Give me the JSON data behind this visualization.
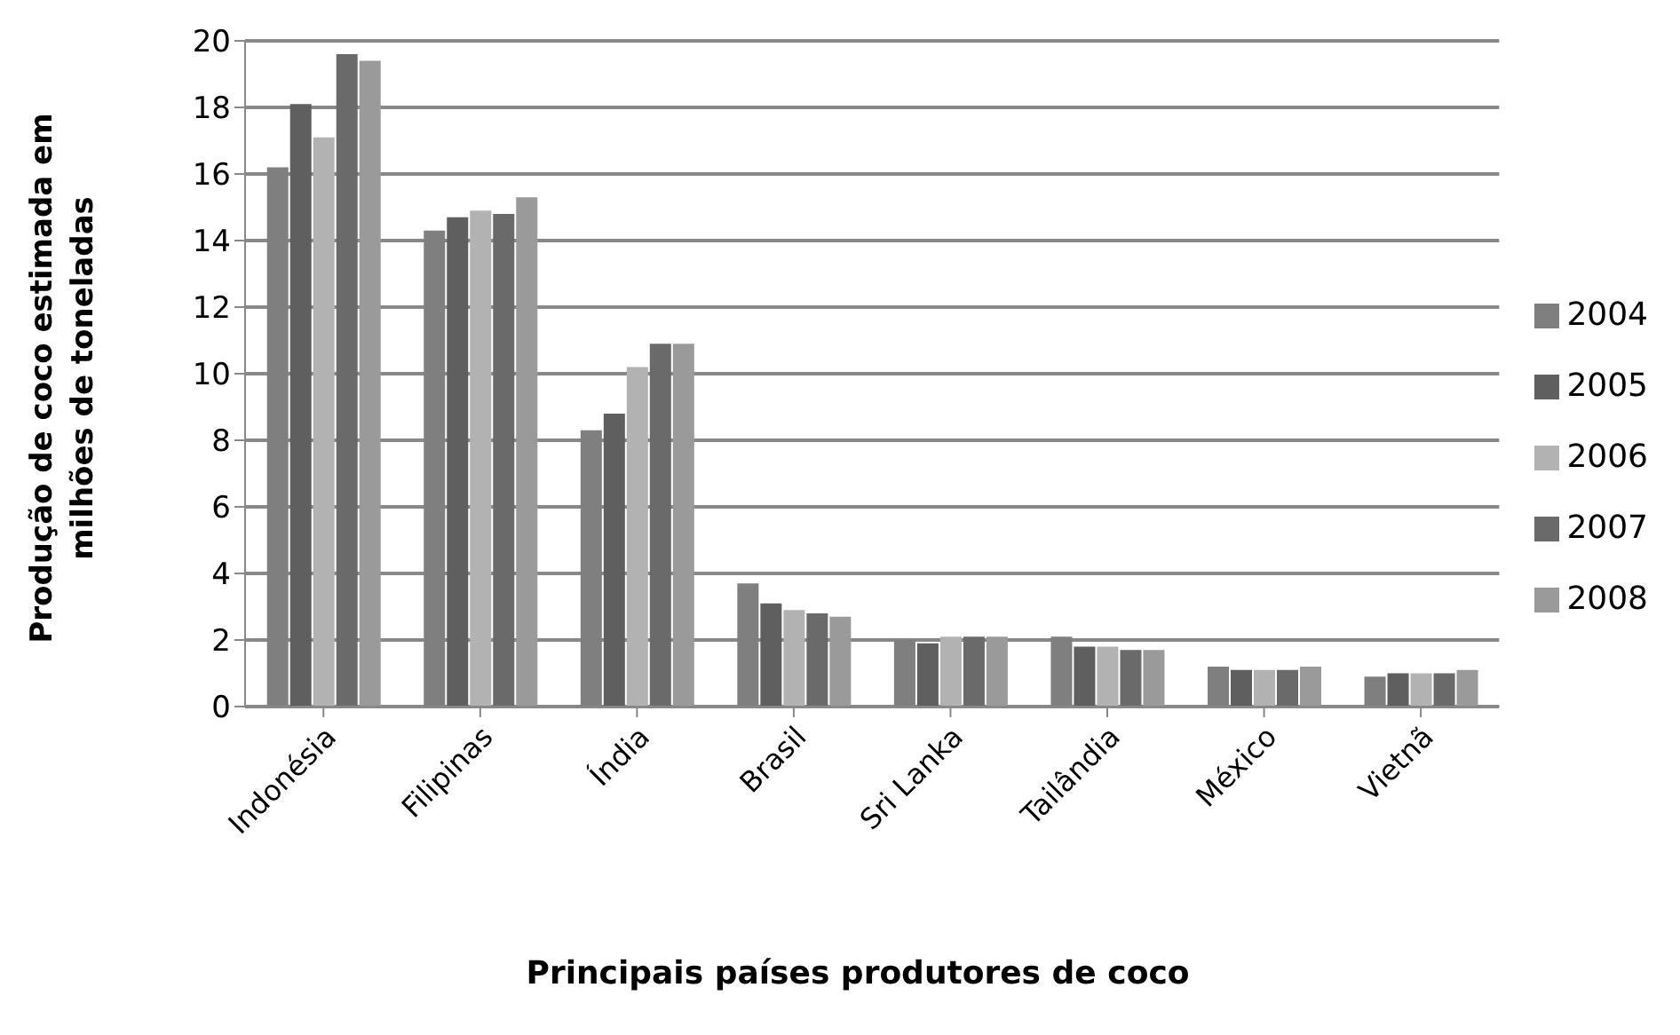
{
  "chart_data": {
    "type": "bar",
    "xlabel": "Principais países produtores de coco",
    "ylabel": "Produção de coco estimada  em milhões de toneladas",
    "categories": [
      "Indonésia",
      "Filipinas",
      "Índia",
      "Brasil",
      "Sri Lanka",
      "Tailândia",
      "México",
      "Vietnã"
    ],
    "series": [
      {
        "name": "2004",
        "color": "#7f7f7f",
        "values": [
          16.2,
          14.3,
          8.3,
          3.7,
          2.0,
          2.1,
          1.2,
          0.9
        ]
      },
      {
        "name": "2005",
        "color": "#5f5f5f",
        "values": [
          18.1,
          14.7,
          8.8,
          3.1,
          1.9,
          1.8,
          1.1,
          1.0
        ]
      },
      {
        "name": "2006",
        "color": "#b2b2b2",
        "values": [
          17.1,
          14.9,
          10.2,
          2.9,
          2.1,
          1.8,
          1.1,
          1.0
        ]
      },
      {
        "name": "2007",
        "color": "#6a6a6a",
        "values": [
          19.6,
          14.8,
          10.9,
          2.8,
          2.1,
          1.7,
          1.1,
          1.0
        ]
      },
      {
        "name": "2008",
        "color": "#9a9a9a",
        "values": [
          19.4,
          15.3,
          10.9,
          2.7,
          2.1,
          1.7,
          1.2,
          1.1
        ]
      }
    ],
    "ylim": [
      0,
      20
    ],
    "yticks": [
      0,
      2,
      4,
      6,
      8,
      10,
      12,
      14,
      16,
      18,
      20
    ],
    "grid": "y",
    "legend": "right"
  }
}
